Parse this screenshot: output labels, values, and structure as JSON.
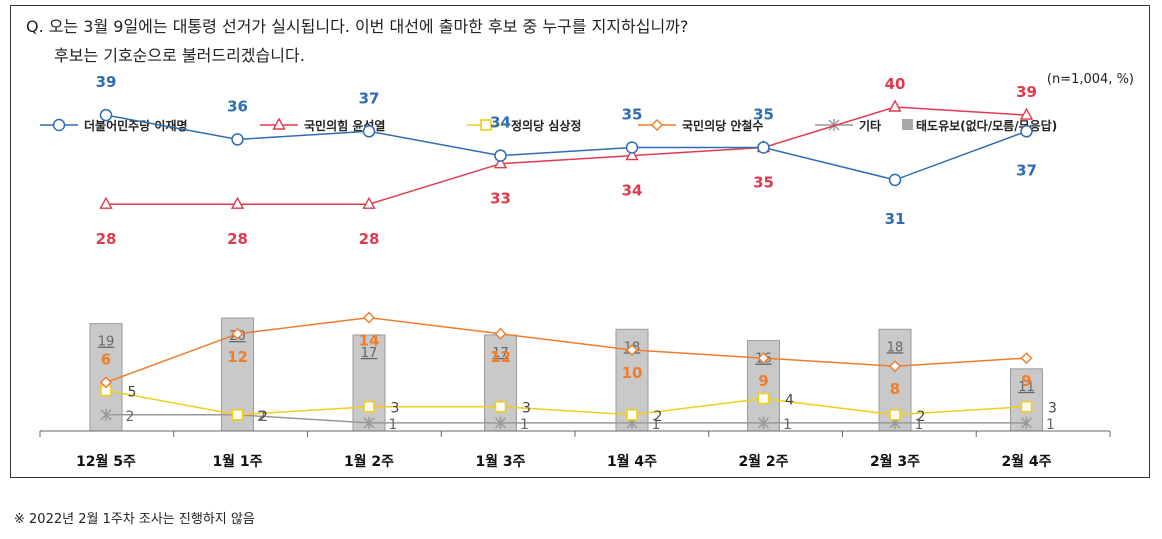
{
  "question": {
    "line1": "Q. 오는 3월 9일에는 대통령 선거가 실시됩니다. 이번 대선에 출마한 후보 중 누구를 지지하십니까?",
    "line2": "후보는 기호순으로 불러드리겠습니다."
  },
  "sample_note": "(n=1,004, %)",
  "footnote": "※ 2022년 2월 1주차 조사는 진행하지 않음",
  "chart_data": {
    "type": "line",
    "categories": [
      "12월 5주",
      "1월 1주",
      "1월 2주",
      "1월 3주",
      "1월 4주",
      "2월 2주",
      "2월 3주",
      "2월 4주"
    ],
    "ylim": [
      0,
      45
    ],
    "series": [
      {
        "name": "더불어민주당 이재명",
        "type": "line",
        "color": "#2e6db4",
        "marker": "circle",
        "values": [
          39,
          36,
          37,
          34,
          35,
          35,
          31,
          37
        ]
      },
      {
        "name": "국민의힘 윤석열",
        "type": "line",
        "color": "#e03a4f",
        "marker": "triangle",
        "values": [
          28,
          28,
          28,
          33,
          34,
          35,
          40,
          39
        ]
      },
      {
        "name": "정의당 심상정",
        "type": "line",
        "color": "#f2cd1c",
        "marker": "square",
        "values": [
          5,
          2,
          3,
          3,
          2,
          4,
          2,
          3
        ]
      },
      {
        "name": "국민의당 안철수",
        "type": "line",
        "color": "#ee7d2c",
        "marker": "diamond",
        "values": [
          6,
          12,
          14,
          12,
          10,
          9,
          8,
          9
        ]
      },
      {
        "name": "기타",
        "type": "line",
        "color": "#999999",
        "marker": "star",
        "values": [
          2,
          2,
          1,
          1,
          1,
          1,
          1,
          1
        ]
      },
      {
        "name": "태도유보(없다/모름/무응답)",
        "type": "bar",
        "color": "#c9c9c9",
        "values": [
          19,
          20,
          17,
          17,
          18,
          16,
          18,
          11
        ]
      }
    ]
  }
}
